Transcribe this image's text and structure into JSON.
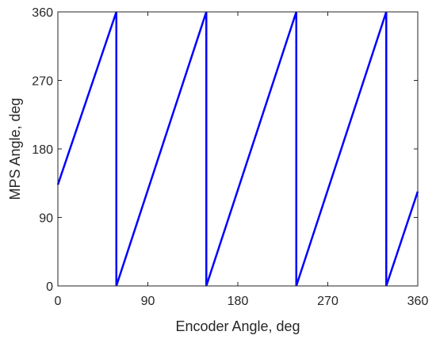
{
  "chart_data": {
    "type": "line",
    "title": "",
    "xlabel": "Encoder Angle, deg",
    "ylabel": "MPS Angle, deg",
    "xlim": [
      0,
      360
    ],
    "ylim": [
      0,
      360
    ],
    "xticks": [
      0,
      90,
      180,
      270,
      360
    ],
    "yticks": [
      0,
      90,
      180,
      270,
      360
    ],
    "grid": false,
    "box": true,
    "colors": {
      "series": "#0000ff",
      "axes": "#262626",
      "background": "#ffffff"
    },
    "series": [
      {
        "x": [
          0,
          58.5,
          58.5,
          148.5,
          148.5,
          238.5,
          238.5,
          328.5,
          328.5,
          360
        ],
        "y": [
          133,
          360,
          0,
          360,
          0,
          360,
          0,
          360,
          0,
          124
        ]
      }
    ]
  }
}
